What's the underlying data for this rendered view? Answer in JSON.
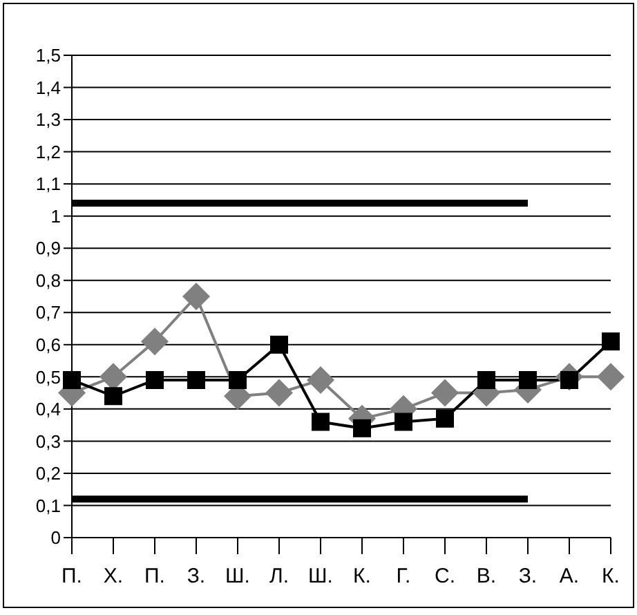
{
  "chart_data": {
    "type": "line",
    "categories": [
      "П.",
      "Х.",
      "П.",
      "З.",
      "Ш.",
      "Л.",
      "Ш.",
      "К.",
      "Г.",
      "С.",
      "В.",
      "З.",
      "А.",
      "К."
    ],
    "series": [
      {
        "color": "#808080",
        "marker": "diamond",
        "values": [
          0.45,
          0.5,
          0.61,
          0.75,
          0.44,
          0.45,
          0.49,
          0.37,
          0.4,
          0.45,
          0.45,
          0.46,
          0.5,
          0.5
        ]
      },
      {
        "color": "#000000",
        "marker": "square",
        "values": [
          0.49,
          0.44,
          0.49,
          0.49,
          0.49,
          0.6,
          0.36,
          0.34,
          0.36,
          0.37,
          0.49,
          0.49,
          0.49,
          0.61
        ]
      },
      {
        "color": "#000000",
        "marker": "none",
        "values": [
          1.04,
          1.04,
          1.04,
          1.04,
          1.04,
          1.04,
          1.04,
          1.04,
          1.04,
          1.04,
          1.04,
          1.04,
          null,
          null
        ]
      },
      {
        "color": "#000000",
        "marker": "none",
        "values": [
          0.12,
          0.12,
          0.12,
          0.12,
          0.12,
          0.12,
          0.12,
          0.12,
          0.12,
          0.12,
          0.12,
          0.12,
          null,
          null
        ]
      }
    ],
    "ylim": [
      0,
      1.5
    ],
    "yticks": [
      0,
      {
        "value": 0.1,
        "label": "0,1"
      },
      {
        "value": 0.2,
        "label": "0,2"
      },
      {
        "value": 0.3,
        "label": "0,3"
      },
      {
        "value": 0.4,
        "label": "0,4"
      },
      {
        "value": 0.5,
        "label": "0,5"
      },
      {
        "value": 0.6,
        "label": "0,6"
      },
      {
        "value": 0.7,
        "label": "0,7"
      },
      {
        "value": 0.8,
        "label": "0,8"
      },
      {
        "value": 0.9,
        "label": "0,9"
      },
      1,
      {
        "value": 1.1,
        "label": "1,1"
      },
      {
        "value": 1.2,
        "label": "1,2"
      },
      {
        "value": 1.3,
        "label": "1,3"
      },
      {
        "value": 1.4,
        "label": "1,4"
      },
      {
        "value": 1.5,
        "label": "1,5"
      }
    ],
    "grid": "y",
    "legend": false
  }
}
